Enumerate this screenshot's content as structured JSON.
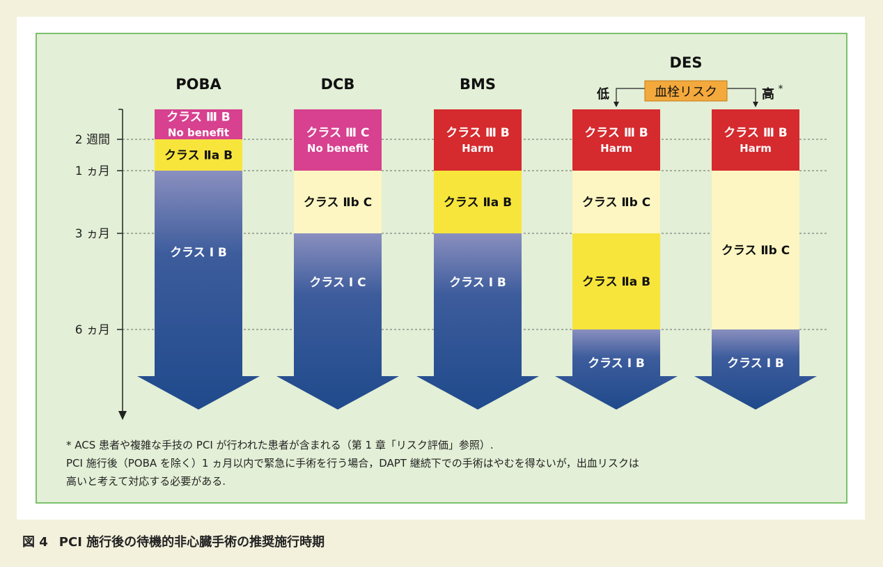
{
  "figure": {
    "columns": [
      {
        "id": "poba",
        "header": "POBA",
        "bands": [
          {
            "color": "#d7418f",
            "lines": [
              "クラス Ⅲ B",
              "No benefit"
            ],
            "text_color": "#ffffff",
            "end": "2 週間"
          },
          {
            "color": "#f7e53c",
            "lines": [
              "クラス Ⅱa B"
            ],
            "text_color": "#111111",
            "end": "1 ヵ月"
          },
          {
            "color": "gradient",
            "lines": [
              "クラス Ⅰ B"
            ],
            "text_color": "#ffffff",
            "end": "arrow"
          }
        ]
      },
      {
        "id": "dcb",
        "header": "DCB",
        "bands": [
          {
            "color": "#d7418f",
            "lines": [
              "クラス Ⅲ C",
              "No benefit"
            ],
            "text_color": "#ffffff",
            "end": "1 ヵ月"
          },
          {
            "color": "#fdf6c2",
            "lines": [
              "クラス Ⅱb C"
            ],
            "text_color": "#111111",
            "end": "3 ヵ月"
          },
          {
            "color": "gradient",
            "lines": [
              "クラス Ⅰ C"
            ],
            "text_color": "#ffffff",
            "end": "arrow"
          }
        ]
      },
      {
        "id": "bms",
        "header": "BMS",
        "bands": [
          {
            "color": "#d52a2e",
            "lines": [
              "クラス Ⅲ B",
              "Harm"
            ],
            "text_color": "#ffffff",
            "end": "1 ヵ月"
          },
          {
            "color": "#f7e53c",
            "lines": [
              "クラス Ⅱa B"
            ],
            "text_color": "#111111",
            "end": "3 ヵ月"
          },
          {
            "color": "gradient",
            "lines": [
              "クラス Ⅰ B"
            ],
            "text_color": "#ffffff",
            "end": "arrow"
          }
        ]
      },
      {
        "id": "des-low",
        "header": "",
        "bands": [
          {
            "color": "#d52a2e",
            "lines": [
              "クラス Ⅲ B",
              "Harm"
            ],
            "text_color": "#ffffff",
            "end": "1 ヵ月"
          },
          {
            "color": "#fdf6c2",
            "lines": [
              "クラス Ⅱb C"
            ],
            "text_color": "#111111",
            "end": "3 ヵ月"
          },
          {
            "color": "#f7e53c",
            "lines": [
              "クラス Ⅱa B"
            ],
            "text_color": "#111111",
            "end": "6 ヵ月"
          },
          {
            "color": "gradient",
            "lines": [
              "クラス Ⅰ B"
            ],
            "text_color": "#ffffff",
            "end": "arrow"
          }
        ]
      },
      {
        "id": "des-high",
        "header": "",
        "bands": [
          {
            "color": "#d52a2e",
            "lines": [
              "クラス Ⅲ B",
              "Harm"
            ],
            "text_color": "#ffffff",
            "end": "1 ヵ月"
          },
          {
            "color": "#fdf6c2",
            "lines": [
              "クラス Ⅱb C"
            ],
            "text_color": "#111111",
            "end": "6 ヵ月"
          },
          {
            "color": "gradient",
            "lines": [
              "クラス Ⅰ B"
            ],
            "text_color": "#ffffff",
            "end": "arrow"
          }
        ]
      }
    ],
    "time_axis": [
      "2 週間",
      "1 ヵ月",
      "3 ヵ月",
      "6 ヵ月"
    ],
    "des": {
      "title": "DES",
      "risk_label": "血栓リスク",
      "low": "低",
      "high": "高",
      "high_mark": "*"
    },
    "colors": {
      "arrow_top": "#8a8fbf",
      "arrow_bottom": "#1f4a8c",
      "risk_box": "#f3a93c"
    }
  },
  "notes": [
    "* ACS 患者や複雑な手技の PCI が行われた患者が含まれる（第 1 章「リスク評価」参照）.",
    "PCI 施行後（POBA を除く）1 ヵ月以内で緊急に手術を行う場合，DAPT 継続下での手術はやむを得ないが，出血リスクは",
    "高いと考えて対応する必要がある."
  ],
  "caption": {
    "number": "図 4",
    "title": "PCI 施行後の待機的非心臓手術の推奨施行時期"
  }
}
